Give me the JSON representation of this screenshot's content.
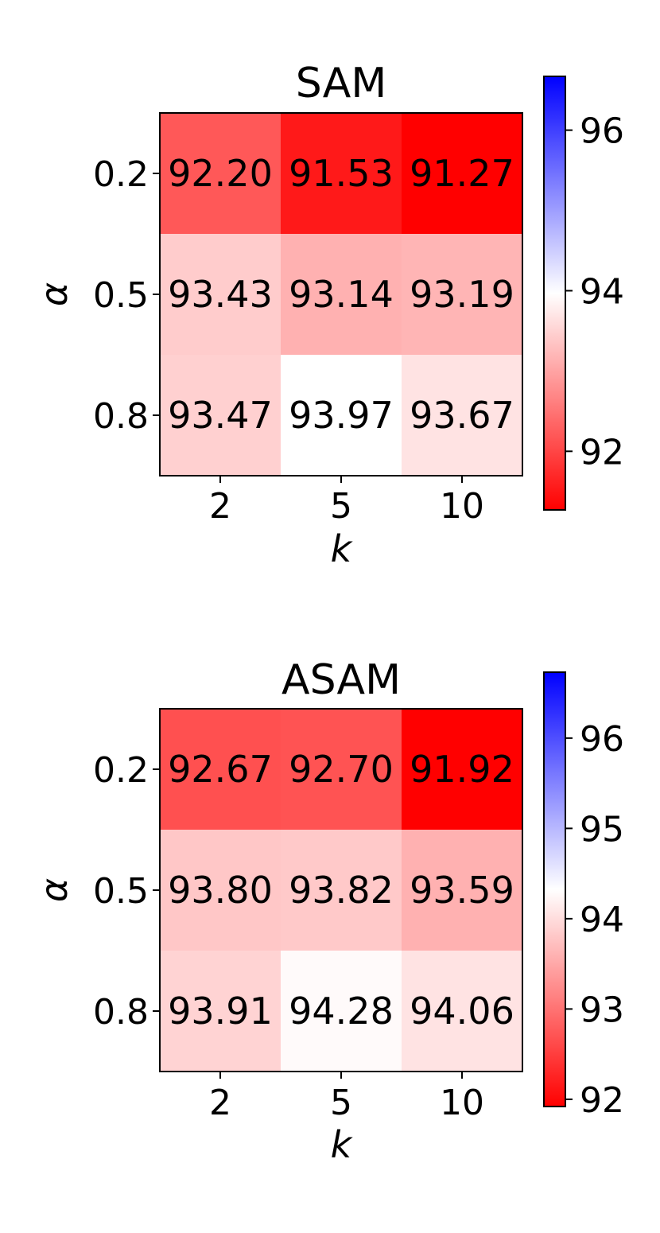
{
  "chart_data": [
    {
      "type": "heatmap",
      "title": "SAM",
      "xlabel": "k",
      "ylabel": "α",
      "x_categories": [
        "2",
        "5",
        "10"
      ],
      "y_categories": [
        "0.2",
        "0.5",
        "0.8"
      ],
      "values": [
        [
          92.2,
          91.53,
          91.27
        ],
        [
          93.43,
          93.14,
          93.19
        ],
        [
          93.47,
          93.97,
          93.67
        ]
      ],
      "cell_labels": [
        [
          "92.20",
          "91.53",
          "91.27"
        ],
        [
          "93.43",
          "93.14",
          "93.19"
        ],
        [
          "93.47",
          "93.97",
          "93.67"
        ]
      ],
      "colorbar": {
        "cmap": "bwr_r",
        "vmin": 91.27,
        "vmax": 96.67,
        "ticks": [
          92,
          94,
          96
        ],
        "tick_labels": [
          "92",
          "94",
          "96"
        ]
      }
    },
    {
      "type": "heatmap",
      "title": "ASAM",
      "xlabel": "k",
      "ylabel": "α",
      "x_categories": [
        "2",
        "5",
        "10"
      ],
      "y_categories": [
        "0.2",
        "0.5",
        "0.8"
      ],
      "values": [
        [
          92.67,
          92.7,
          91.92
        ],
        [
          93.8,
          93.82,
          93.59
        ],
        [
          93.91,
          94.28,
          94.06
        ]
      ],
      "cell_labels": [
        [
          "92.67",
          "92.70",
          "91.92"
        ],
        [
          "93.80",
          "93.82",
          "93.59"
        ],
        [
          "93.91",
          "94.28",
          "94.06"
        ]
      ],
      "colorbar": {
        "cmap": "bwr_r",
        "vmin": 91.92,
        "vmax": 96.73,
        "ticks": [
          92,
          93,
          94,
          95,
          96
        ],
        "tick_labels": [
          "92",
          "93",
          "94",
          "95",
          "96"
        ]
      }
    }
  ],
  "colors": {
    "low": "#ff0000",
    "mid": "#ffffff",
    "high": "#0000ff",
    "axes": "#000000"
  }
}
